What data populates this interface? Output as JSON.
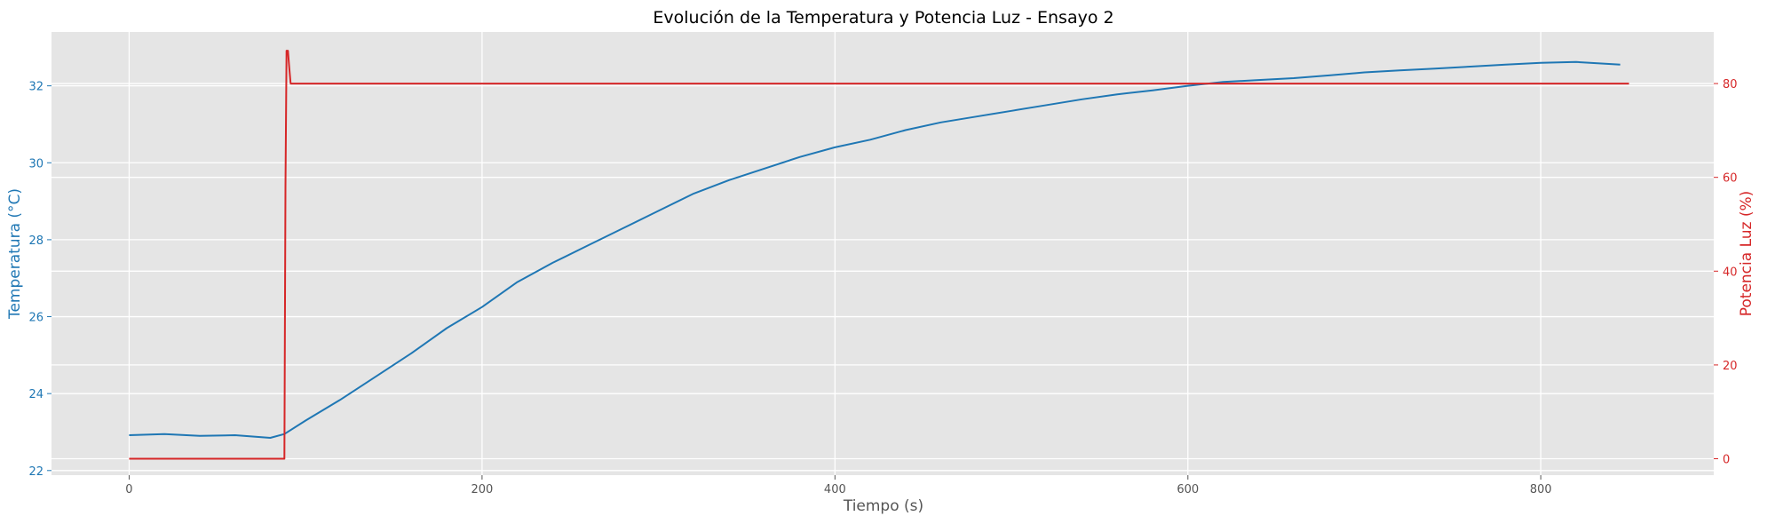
{
  "colors": {
    "temperature": "#1f77b4",
    "power": "#d62728",
    "plot_background": "#e5e5e5",
    "grid": "#ffffff",
    "label_gray": "#555555"
  },
  "chart_data": {
    "type": "line",
    "title": "Evolución de la Temperatura y Potencia Luz - Ensayo 2",
    "xlabel": "Tiempo (s)",
    "ylabel": "Temperatura (°C)",
    "y2label": "Potencia Luz (%)",
    "xlim": [
      -44,
      898
    ],
    "ylim": [
      21.88,
      33.4
    ],
    "y2lim": [
      -3.5,
      91
    ],
    "grid": true,
    "x_ticks": [
      0,
      200,
      400,
      600,
      800
    ],
    "y_ticks": [
      22,
      24,
      26,
      28,
      30,
      32
    ],
    "y2_ticks": [
      0,
      20,
      40,
      60,
      80
    ],
    "series": [
      {
        "name": "Temperatura (°C)",
        "axis": "left",
        "x": [
          0,
          20,
          40,
          60,
          80,
          88,
          100,
          120,
          140,
          160,
          180,
          200,
          220,
          240,
          260,
          280,
          300,
          320,
          340,
          360,
          380,
          400,
          420,
          440,
          460,
          480,
          500,
          520,
          540,
          560,
          580,
          600,
          620,
          640,
          660,
          680,
          700,
          720,
          740,
          760,
          780,
          800,
          820,
          845
        ],
        "values": [
          22.92,
          22.95,
          22.9,
          22.92,
          22.85,
          22.95,
          23.3,
          23.85,
          24.45,
          25.05,
          25.7,
          26.25,
          26.9,
          27.4,
          27.85,
          28.3,
          28.75,
          29.2,
          29.55,
          29.85,
          30.15,
          30.4,
          30.6,
          30.85,
          31.05,
          31.2,
          31.35,
          31.5,
          31.65,
          31.78,
          31.88,
          32.0,
          32.1,
          32.15,
          32.2,
          32.27,
          32.35,
          32.4,
          32.45,
          32.5,
          32.55,
          32.6,
          32.62,
          32.55
        ]
      },
      {
        "name": "Potencia Luz (%)",
        "axis": "right",
        "x": [
          0,
          88,
          88.6,
          89.2,
          90,
          90.6,
          91.5,
          850
        ],
        "values": [
          0,
          0,
          58,
          87,
          87,
          84,
          80,
          80
        ]
      }
    ]
  }
}
